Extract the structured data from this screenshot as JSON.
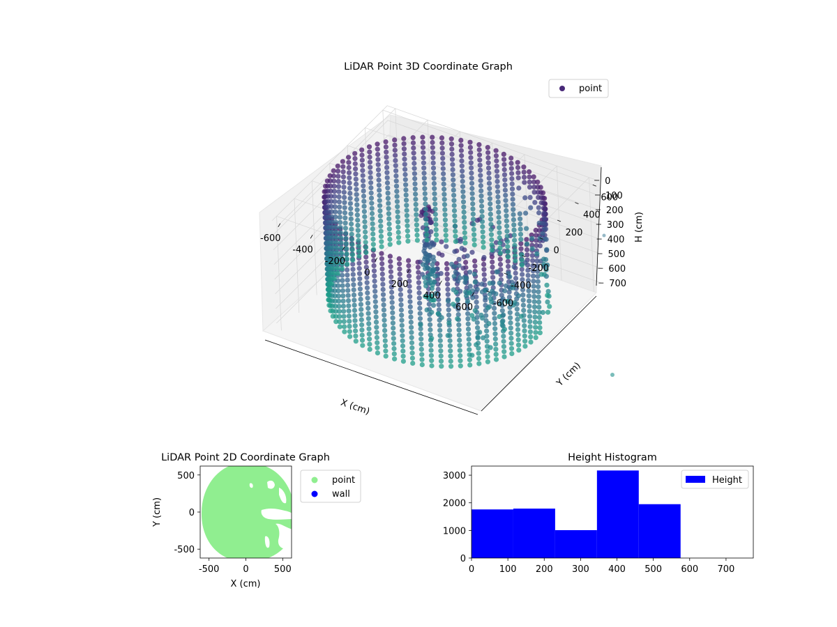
{
  "chart_data": [
    {
      "type": "scatter",
      "projection": "3d",
      "title": "LiDAR Point 3D Coordinate Graph",
      "xlabel": "X (cm)",
      "ylabel": "Y (cm)",
      "zlabel": "H (cm)",
      "x_ticks": [
        -600,
        -400,
        -200,
        0,
        200,
        400,
        600
      ],
      "y_ticks": [
        -600,
        -400,
        -200,
        0,
        200,
        400,
        600
      ],
      "z_ticks": [
        0,
        100,
        200,
        300,
        400,
        500,
        600,
        700
      ],
      "xlim": [
        -650,
        650
      ],
      "ylim": [
        -650,
        650
      ],
      "zlim": [
        780,
        0
      ],
      "z_inverted": true,
      "grid": true,
      "legend": {
        "position": "upper right",
        "entries": [
          {
            "label": "point",
            "color": "#482878"
          }
        ]
      },
      "colormap": "viridis",
      "shape": "ring wall of points around origin, radius ~600 cm, height 0-700 cm, plus a cluster of obstacle points",
      "ring_radius": 600,
      "height_range": [
        0,
        700
      ]
    },
    {
      "type": "scatter",
      "title": "LiDAR Point 2D Coordinate Graph",
      "xlabel": "X (cm)",
      "ylabel": "Y (cm)",
      "x_ticks": [
        -500,
        0,
        500
      ],
      "y_ticks": [
        -500,
        0,
        500
      ],
      "xlim": [
        -620,
        620
      ],
      "ylim": [
        -620,
        620
      ],
      "legend": {
        "position": "outside right",
        "entries": [
          {
            "label": "point",
            "color": "#90ee90"
          },
          {
            "label": "wall",
            "color": "#0000ff"
          }
        ]
      },
      "series": [
        {
          "name": "point",
          "color": "#90ee90"
        },
        {
          "name": "wall",
          "color": "#0000ff"
        }
      ]
    },
    {
      "type": "bar",
      "subtype": "histogram",
      "title": "Height Histogram",
      "xlabel": "",
      "ylabel": "",
      "bin_edges": [
        0,
        115,
        230,
        345,
        460,
        575,
        690
      ],
      "values": [
        1760,
        1790,
        1010,
        3170,
        1950,
        0
      ],
      "x_ticks": [
        0,
        100,
        200,
        300,
        400,
        500,
        600,
        700
      ],
      "y_ticks": [
        0,
        1000,
        2000,
        3000
      ],
      "xlim": [
        0,
        775
      ],
      "ylim": [
        0,
        3330
      ],
      "color": "#0000ff",
      "legend": {
        "position": "upper right",
        "entries": [
          {
            "label": "Height",
            "color": "#0000ff"
          }
        ]
      }
    }
  ]
}
